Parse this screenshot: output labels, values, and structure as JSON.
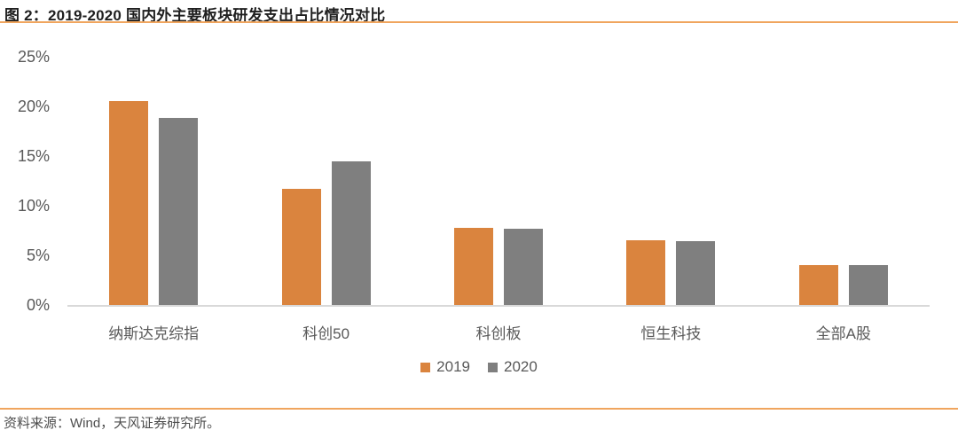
{
  "header": {
    "title": "图 2：2019-2020 国内外主要板块研发支出占比情况对比"
  },
  "footer": {
    "source": "资料来源：Wind，天风证券研究所。"
  },
  "colors": {
    "accent_2019": "#da843e",
    "accent_2020": "#7f7f7f",
    "orange_rule": "#f0a55e",
    "axis_line": "#d9d9d9",
    "tick_text": "#595959",
    "title_text": "#1f1f1f"
  },
  "chart_data": {
    "type": "bar",
    "title": "图 2：2019-2020 国内外主要板块研发支出占比情况对比",
    "categories": [
      "纳斯达克综指",
      "科创50",
      "科创板",
      "恒生科技",
      "全部A股"
    ],
    "series": [
      {
        "name": "2019",
        "color": "#da843e",
        "values": [
          20.5,
          11.7,
          7.8,
          6.5,
          4.0
        ]
      },
      {
        "name": "2020",
        "color": "#7f7f7f",
        "values": [
          18.8,
          14.5,
          7.7,
          6.4,
          4.0
        ]
      }
    ],
    "xlabel": "",
    "ylabel": "",
    "ylim": [
      0,
      25
    ],
    "y_ticks": [
      "0%",
      "5%",
      "10%",
      "15%",
      "20%",
      "25%"
    ],
    "grid": false,
    "legend_position": "bottom"
  }
}
